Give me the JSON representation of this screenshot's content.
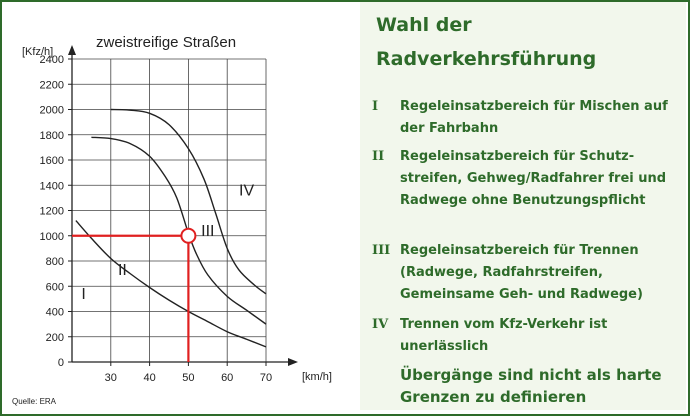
{
  "panel": {
    "title_line1": "Wahl der",
    "title_line2": "Radverkehrsführung",
    "items": [
      {
        "roman": "I",
        "text": "Regeleinsatzbereich für Mischen auf der Fahrbahn"
      },
      {
        "roman": "II",
        "text": "Regeleinsatzbereich für Schutz-streifen, Gehweg/Radfahrer frei und Radwege ohne Benutzungspflicht"
      },
      {
        "roman": "III",
        "text": "Regeleinsatzbereich für Trennen (Radwege, Radfahrstreifen, Gemeinsame Geh- und Radwege)"
      },
      {
        "roman": "IV",
        "text": "Trennen vom Kfz-Verkehr ist unerlässlich"
      }
    ],
    "note": "Übergänge sind nicht als harte Grenzen zu definieren"
  },
  "colors": {
    "green": "#2e6b2a",
    "panel_bg": "#f2f7ec",
    "highlight": "#e02020"
  },
  "chart_data": {
    "type": "line",
    "title": "zweistreifige Straßen",
    "ylabel": "[Kfz/h]",
    "xlabel": "[km/h]",
    "xticks": [
      30,
      40,
      50,
      60,
      70
    ],
    "yticks": [
      0,
      200,
      400,
      600,
      800,
      1000,
      1200,
      1400,
      1600,
      1800,
      2000,
      2200,
      2400
    ],
    "xlim": [
      20,
      70
    ],
    "ylim": [
      0,
      2400
    ],
    "grid": true,
    "series": [
      {
        "points": [
          [
            21,
            1120
          ],
          [
            25,
            980
          ],
          [
            30,
            820
          ],
          [
            35,
            700
          ],
          [
            40,
            590
          ],
          [
            45,
            490
          ],
          [
            50,
            400
          ],
          [
            55,
            320
          ],
          [
            60,
            240
          ],
          [
            65,
            180
          ],
          [
            70,
            120
          ]
        ]
      },
      {
        "points": [
          [
            25,
            1780
          ],
          [
            30,
            1770
          ],
          [
            35,
            1730
          ],
          [
            40,
            1630
          ],
          [
            44,
            1470
          ],
          [
            47,
            1300
          ],
          [
            50,
            1020
          ],
          [
            52,
            860
          ],
          [
            55,
            690
          ],
          [
            60,
            520
          ],
          [
            65,
            410
          ],
          [
            70,
            300
          ]
        ]
      },
      {
        "points": [
          [
            30,
            2000
          ],
          [
            35,
            1995
          ],
          [
            40,
            1970
          ],
          [
            45,
            1880
          ],
          [
            50,
            1690
          ],
          [
            54,
            1450
          ],
          [
            57,
            1180
          ],
          [
            60,
            900
          ],
          [
            63,
            730
          ],
          [
            67,
            610
          ],
          [
            70,
            540
          ]
        ]
      }
    ],
    "annotations": [
      {
        "text": "I",
        "x": 23,
        "y": 500
      },
      {
        "text": "II",
        "x": 33,
        "y": 690
      },
      {
        "text": "III",
        "x": 55,
        "y": 1000
      },
      {
        "text": "IV",
        "x": 65,
        "y": 1320
      }
    ],
    "highlight": {
      "x": 50,
      "y": 1000
    },
    "source": "Quelle: ERA"
  }
}
